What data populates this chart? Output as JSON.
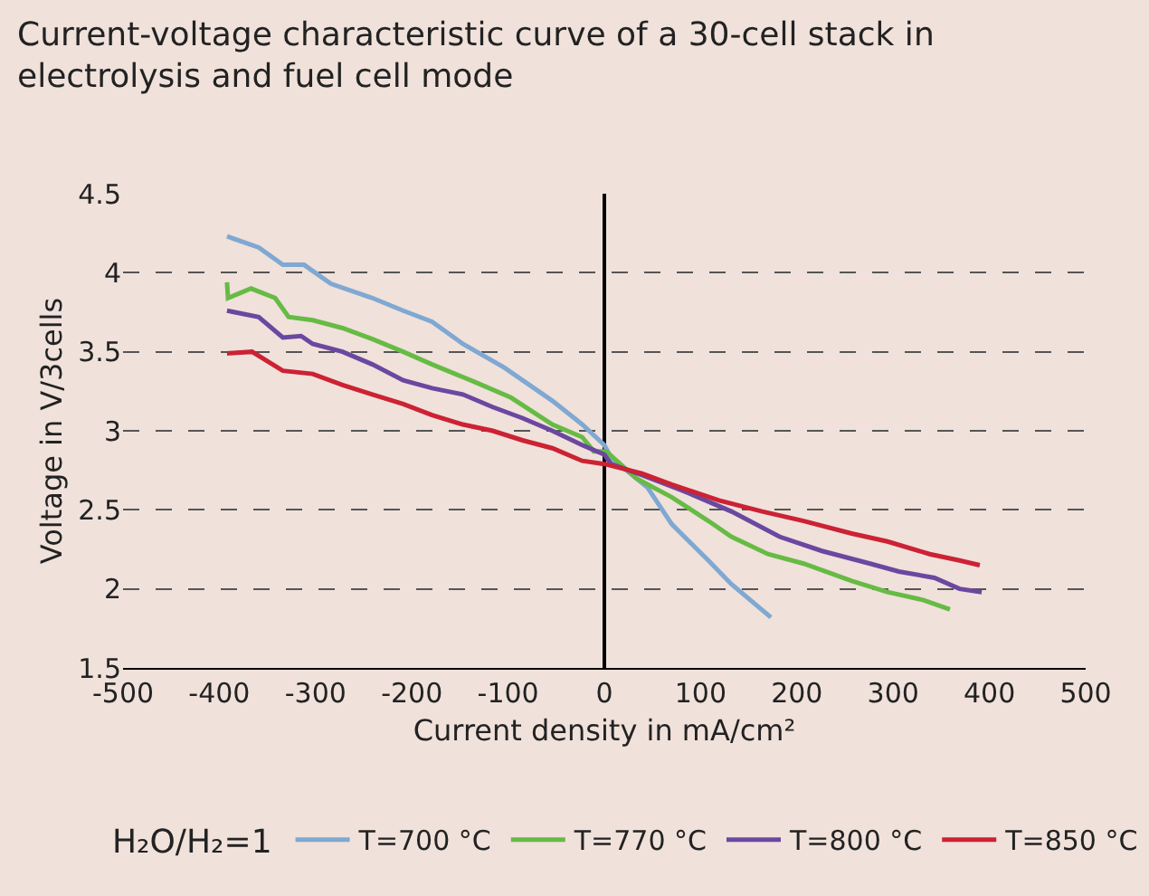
{
  "chart_data": {
    "type": "line",
    "title": "Current-voltage characteristic curve of a 30-cell stack in electrolysis and fuel cell mode",
    "xlabel": "Current density in mA/cm²",
    "ylabel": "Voltage in V/3cells",
    "legend_title": "H₂O/H₂=1",
    "xlim": [
      -500,
      500
    ],
    "xticks": [
      -500,
      -400,
      -300,
      -200,
      -100,
      0,
      100,
      200,
      300,
      400,
      500
    ],
    "ylim": [
      1.5,
      4.5
    ],
    "yticks": [
      1.5,
      2,
      2.5,
      3,
      3.5,
      4,
      4.5
    ],
    "grid": "y",
    "legend": "bottom",
    "marker": "none",
    "line_style": "solid",
    "series": [
      {
        "name": "T=700 °C",
        "color": "#7fa8d2",
        "x": [
          -392,
          -359,
          -334,
          -312,
          -284,
          -241,
          -209,
          -179,
          -147,
          -104,
          -54,
          -23,
          0,
          7,
          45,
          70,
          108,
          132,
          173
        ],
        "values": [
          4.23,
          4.16,
          4.05,
          4.05,
          3.93,
          3.84,
          3.76,
          3.69,
          3.55,
          3.4,
          3.19,
          3.04,
          2.91,
          2.83,
          2.64,
          2.41,
          2.18,
          2.03,
          1.82
        ]
      },
      {
        "name": "T=770 °C",
        "color": "#66bb44",
        "x": [
          -392,
          -391,
          -367,
          -342,
          -328,
          -303,
          -272,
          -241,
          -209,
          -179,
          -135,
          -97,
          -54,
          -23,
          -11,
          2,
          33,
          70,
          108,
          132,
          170,
          207,
          257,
          294,
          331,
          359
        ],
        "values": [
          3.94,
          3.84,
          3.9,
          3.84,
          3.72,
          3.7,
          3.65,
          3.58,
          3.5,
          3.42,
          3.31,
          3.21,
          3.04,
          2.96,
          2.87,
          2.87,
          2.7,
          2.58,
          2.43,
          2.33,
          2.22,
          2.16,
          2.05,
          1.98,
          1.93,
          1.87
        ]
      },
      {
        "name": "T=800 °C",
        "color": "#6a48a0",
        "x": [
          -392,
          -359,
          -334,
          -315,
          -303,
          -272,
          -241,
          -209,
          -179,
          -147,
          -116,
          -85,
          -54,
          -23,
          0,
          7,
          39,
          82,
          132,
          182,
          226,
          276,
          306,
          343,
          369,
          392
        ],
        "values": [
          3.76,
          3.72,
          3.59,
          3.6,
          3.55,
          3.5,
          3.42,
          3.32,
          3.27,
          3.23,
          3.15,
          3.08,
          3.0,
          2.91,
          2.85,
          2.79,
          2.72,
          2.62,
          2.49,
          2.33,
          2.24,
          2.16,
          2.11,
          2.07,
          2.0,
          1.98
        ]
      },
      {
        "name": "T=850 °C",
        "color": "#cc2233",
        "x": [
          -392,
          -366,
          -334,
          -303,
          -272,
          -241,
          -209,
          -179,
          -147,
          -116,
          -85,
          -54,
          -23,
          0,
          39,
          70,
          119,
          164,
          207,
          257,
          294,
          338,
          369,
          390
        ],
        "values": [
          3.49,
          3.5,
          3.38,
          3.36,
          3.29,
          3.23,
          3.17,
          3.1,
          3.04,
          3.0,
          2.94,
          2.89,
          2.81,
          2.79,
          2.73,
          2.66,
          2.56,
          2.49,
          2.43,
          2.35,
          2.3,
          2.22,
          2.18,
          2.15
        ]
      }
    ]
  }
}
